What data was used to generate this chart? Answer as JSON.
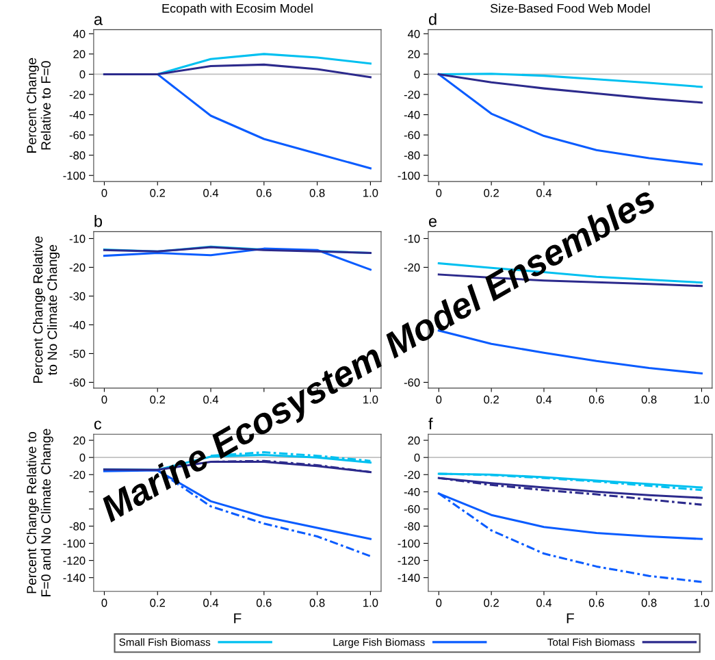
{
  "chart_data": [
    {
      "type": "line",
      "title": "Ecopath with Ecosim Model",
      "ylabel": "Percent Change\nRelative to F=0",
      "annotations": [
        "a"
      ],
      "x": [
        0,
        0.2,
        0.4,
        0.6,
        0.8,
        1.0
      ],
      "xlim": [
        -0.04,
        1.04
      ],
      "ylim": [
        -106,
        44
      ],
      "xticks": [
        0,
        0.2,
        0.4,
        0.6,
        0.8,
        {
          "value": 1.0,
          "label": "1.0"
        }
      ],
      "yticks": [
        40,
        20,
        0,
        -20,
        -40,
        -60,
        -80,
        -100
      ],
      "ref_lines": [
        {
          "axis": "y",
          "value": 0,
          "color": "#c0c0c0"
        }
      ],
      "grid": false,
      "line_style": "solid",
      "series": [
        {
          "color": "#00c0f0",
          "values": [
            0,
            0,
            15,
            20,
            16.5,
            10.5
          ]
        },
        {
          "color": "#0a5cff",
          "values": [
            0,
            0,
            -41,
            -64,
            -78.5,
            -93
          ]
        },
        {
          "color": "#2c2a8c",
          "values": [
            0,
            0,
            8,
            9.5,
            5,
            -3
          ]
        }
      ]
    },
    {
      "type": "line",
      "ylabel": "Percent Change Relative\nto No Climate Change",
      "annotations": [
        "b",
        "Marine Ecosystem Model Ensembles"
      ],
      "x": [
        0,
        0.2,
        0.4,
        0.6,
        0.8,
        1.0
      ],
      "xlim": [
        -0.04,
        1.04
      ],
      "ylim": [
        -62,
        -7.6
      ],
      "xticks": [
        0,
        0.2,
        0.4,
        {
          "value": 0.6,
          "label": null
        },
        {
          "value": 0.8,
          "label": null
        },
        {
          "value": 1.0,
          "label": "1.0"
        }
      ],
      "yticks": [
        -10,
        -20,
        -30,
        -40,
        -50,
        -60
      ],
      "grid": false,
      "line_style": "solid",
      "series": [
        {
          "color": "#00c0f0",
          "values": [
            -13.8,
            -14.5,
            -12.8,
            -13.8,
            -14.3,
            -15
          ]
        },
        {
          "color": "#0a5cff",
          "values": [
            -16,
            -15,
            -15.8,
            -13.5,
            -14,
            -20.8
          ]
        },
        {
          "color": "#2c2a8c",
          "values": [
            -14,
            -14.5,
            -13,
            -14,
            -14.5,
            -15
          ]
        }
      ]
    },
    {
      "type": "line",
      "ylabel": "Percent Change Relative to\nF=0 and No Climate Change",
      "xlabel": "F",
      "annotations": [
        "c"
      ],
      "x": [
        0,
        0.2,
        0.4,
        0.6,
        0.8,
        1.0
      ],
      "xlim": [
        -0.04,
        1.04
      ],
      "ylim": [
        -156,
        27
      ],
      "xticks": [
        0,
        0.2,
        0.4,
        0.6,
        0.8,
        {
          "value": 1.0,
          "label": "1.0"
        }
      ],
      "yticks": [
        20,
        0,
        -20,
        {
          "value": -40,
          "label": null
        },
        {
          "value": -60,
          "label": null
        },
        -80,
        -100,
        -120,
        -140
      ],
      "ref_lines": [
        {
          "axis": "y",
          "value": 0,
          "color": "#c0c0c0"
        }
      ],
      "grid": false,
      "line_style": "solid",
      "series": [
        {
          "color": "#00c0f0",
          "values": [
            -14,
            -14.5,
            1,
            3,
            0,
            -6
          ]
        },
        {
          "color": "#00c0f0",
          "line_style": "dashdot",
          "values": [
            null,
            null,
            2,
            6,
            2,
            -4
          ]
        },
        {
          "color": "#0a5cff",
          "values": [
            -16,
            -15,
            -51,
            -69,
            -82,
            -95
          ]
        },
        {
          "color": "#0a5cff",
          "line_style": "dashdot",
          "values": [
            null,
            -15,
            -57,
            -77,
            -92,
            -115
          ]
        },
        {
          "color": "#2c2a8c",
          "values": [
            -14,
            -14.5,
            -5,
            -5,
            -10,
            -17
          ]
        },
        {
          "color": "#2c2a8c",
          "line_style": "dashdot",
          "values": [
            null,
            null,
            -5,
            -4,
            -9,
            -17
          ]
        }
      ]
    },
    {
      "type": "line",
      "title": "Size-Based Food Web Model",
      "annotations": [
        "d"
      ],
      "x": [
        0,
        0.2,
        0.4,
        0.6,
        0.8,
        1.0
      ],
      "xlim": [
        -0.04,
        1.04
      ],
      "ylim": [
        -106,
        44
      ],
      "xticks": [
        0,
        0.2,
        0.4,
        {
          "value": 0.6,
          "label": null
        },
        {
          "value": 0.8,
          "label": null
        },
        {
          "value": 1.0,
          "label": null
        }
      ],
      "yticks": [
        40,
        20,
        0,
        -20,
        -40,
        -60,
        -80,
        -100
      ],
      "ref_lines": [
        {
          "axis": "y",
          "value": 0,
          "color": "#c0c0c0"
        }
      ],
      "grid": false,
      "line_style": "solid",
      "series": [
        {
          "color": "#00c0f0",
          "values": [
            0,
            0.5,
            -1.5,
            -5,
            -8.5,
            -12.5
          ]
        },
        {
          "color": "#0a5cff",
          "values": [
            0,
            -39,
            -61,
            -75,
            -83,
            -89
          ]
        },
        {
          "color": "#2c2a8c",
          "values": [
            0,
            -8,
            -14,
            -19,
            -24,
            -28
          ]
        }
      ]
    },
    {
      "type": "line",
      "annotations": [
        "e"
      ],
      "x": [
        0,
        0.2,
        0.4,
        0.6,
        0.8,
        1.0
      ],
      "xlim": [
        -0.04,
        1.04
      ],
      "ylim": [
        -62,
        -7.6
      ],
      "xticks": [
        0,
        0.2,
        0.4,
        0.6,
        0.8,
        {
          "value": 1.0,
          "label": "1.0"
        }
      ],
      "yticks": [
        -10,
        -20,
        -60
      ],
      "grid": false,
      "line_style": "solid",
      "series": [
        {
          "color": "#00c0f0",
          "values": [
            -18.6,
            -20.2,
            -21.7,
            -23.3,
            -24.3,
            -25.3
          ]
        },
        {
          "color": "#0a5cff",
          "values": [
            -42,
            -46.6,
            -49.7,
            -52.6,
            -55,
            -56.9
          ]
        },
        {
          "color": "#2c2a8c",
          "values": [
            -22.5,
            -23.6,
            -24.6,
            -25.2,
            -25.8,
            -26.5
          ]
        }
      ]
    },
    {
      "type": "line",
      "xlabel": "F",
      "annotations": [
        "f"
      ],
      "x": [
        0,
        0.2,
        0.4,
        0.6,
        0.8,
        1.0
      ],
      "xlim": [
        -0.04,
        1.04
      ],
      "ylim": [
        -156,
        27
      ],
      "xticks": [
        0,
        0.2,
        0.4,
        0.6,
        0.8,
        {
          "value": 1.0,
          "label": "1.0"
        }
      ],
      "yticks": [
        20,
        0,
        -20,
        -40,
        -60,
        -80,
        -100,
        -120,
        -140
      ],
      "ref_lines": [
        {
          "axis": "y",
          "value": 0,
          "color": "#c0c0c0"
        }
      ],
      "grid": false,
      "line_style": "solid",
      "legend": "bottom",
      "series": [
        {
          "name": "Small Fish Biomass",
          "color": "#00c0f0",
          "values": [
            -19,
            -20,
            -23,
            -27,
            -31,
            -35
          ]
        },
        {
          "color": "#00c0f0",
          "line_style": "dashdot",
          "values": [
            -19,
            -20.5,
            -24,
            -28,
            -33,
            -38
          ]
        },
        {
          "name": "Large Fish Biomass",
          "color": "#0a5cff",
          "values": [
            -42,
            -67,
            -81,
            -88,
            -92,
            -95
          ]
        },
        {
          "color": "#0a5cff",
          "line_style": "dashdot",
          "values": [
            -42,
            -85,
            -112,
            -127,
            -138,
            -145
          ]
        },
        {
          "name": "Total Fish Biomass",
          "color": "#2c2a8c",
          "values": [
            -24,
            -30,
            -35,
            -40,
            -44,
            -47
          ]
        },
        {
          "color": "#2c2a8c",
          "line_style": "dashdot",
          "values": [
            -24,
            -32,
            -38,
            -43,
            -49,
            -55
          ]
        }
      ]
    }
  ]
}
